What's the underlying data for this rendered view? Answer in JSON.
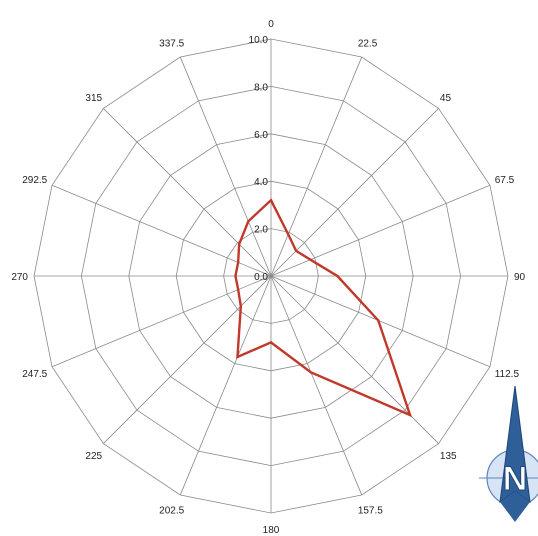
{
  "chart_data": {
    "type": "radar",
    "categories": [
      "0",
      "22.5",
      "45",
      "67.5",
      "90",
      "112.5",
      "135",
      "157.5",
      "180",
      "202.5",
      "225",
      "247.5",
      "270",
      "292.5",
      "315",
      "337.5"
    ],
    "series": [
      {
        "values": [
          3.2,
          1.9,
          1.5,
          1.8,
          2.8,
          4.9,
          8.3,
          4.4,
          2.8,
          3.7,
          1.8,
          1.5,
          1.5,
          1.5,
          1.9,
          2.5
        ]
      }
    ],
    "rlim": [
      0,
      10
    ],
    "rticks": [
      "0.0",
      "2.0",
      "4.0",
      "6.0",
      "8.0",
      "10.0"
    ],
    "grid": true,
    "colors": {
      "series": "#c0392b",
      "grid": "#8a8a8a"
    },
    "icon": "north-arrow-icon",
    "compass_letter": "N"
  }
}
